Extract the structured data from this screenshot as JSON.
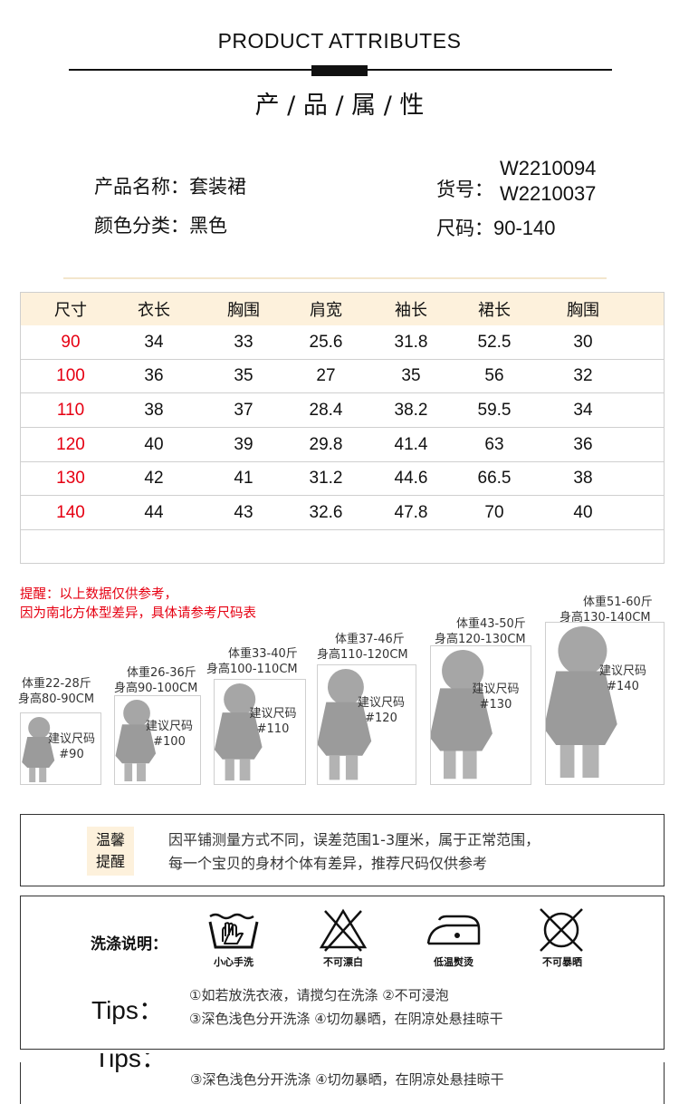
{
  "header": {
    "title_en": "PRODUCT ATTRIBUTES",
    "title_cn": "产 / 品 / 属 / 性"
  },
  "product": {
    "name_text": "产品名称：套装裙",
    "color_text": "颜色分类：黑色",
    "sku_label": "货号：",
    "sku_1": "W2210094",
    "sku_2": "W2210037",
    "size_label": "尺码：",
    "size_value": "90-140"
  },
  "size_table": {
    "headers": [
      "尺寸",
      "衣长",
      "胸围",
      "肩宽",
      "袖长",
      "裙长",
      "胸围"
    ],
    "rows": [
      [
        "90",
        "34",
        "33",
        "25.6",
        "31.8",
        "52.5",
        "30"
      ],
      [
        "100",
        "36",
        "35",
        "27",
        "35",
        "56",
        "32"
      ],
      [
        "110",
        "38",
        "37",
        "28.4",
        "38.2",
        "59.5",
        "34"
      ],
      [
        "120",
        "40",
        "39",
        "29.8",
        "41.4",
        "63",
        "36"
      ],
      [
        "130",
        "42",
        "41",
        "31.2",
        "44.6",
        "66.5",
        "38"
      ],
      [
        "140",
        "44",
        "43",
        "32.6",
        "47.8",
        "70",
        "40"
      ]
    ]
  },
  "reminder": {
    "line1": "提醒：以上数据仅供参考，",
    "line2": "因为南北方体型差异，具体请参考尺码表"
  },
  "size_guide": [
    {
      "weight": "体重22-28斤",
      "height": "身高80-90CM",
      "rec": "建议尺码",
      "size": "#90"
    },
    {
      "weight": "体重26-36斤",
      "height": "身高90-100CM",
      "rec": "建议尺码",
      "size": "#100"
    },
    {
      "weight": "体重33-40斤",
      "height": "身高100-110CM",
      "rec": "建议尺码",
      "size": "#110"
    },
    {
      "weight": "体重37-46斤",
      "height": "身高110-120CM",
      "rec": "建议尺码",
      "size": "#120"
    },
    {
      "weight": "体重43-50斤",
      "height": "身高120-130CM",
      "rec": "建议尺码",
      "size": "#130"
    },
    {
      "weight": "体重51-60斤",
      "height": "身高130-140CM",
      "rec": "建议尺码",
      "size": "#140"
    }
  ],
  "warm_tips": {
    "badge_1": "温馨",
    "badge_2": "提醒",
    "line1": "因平铺测量方式不同，误差范围1-3厘米，属于正常范围，",
    "line2": "每一个宝贝的身材个体有差异，推荐尺码仅供参考"
  },
  "wash": {
    "title": "洗涤说明：",
    "icons": [
      {
        "icon": "hand-wash-icon",
        "label": "小心手洗"
      },
      {
        "icon": "no-bleach-icon",
        "label": "不可漂白"
      },
      {
        "icon": "low-iron-icon",
        "label": "低温熨烫"
      },
      {
        "icon": "no-sun-dry-icon",
        "label": "不可暴晒"
      }
    ],
    "tips_label": "Tips：",
    "tip_line1": "①如若放洗衣液，请搅匀在洗涤 ②不可浸泡",
    "tip_line2": "③深色浅色分开洗涤 ④切勿暴晒，在阴凉处悬挂晾干"
  },
  "duplicate": {
    "tips_label": "Tips：",
    "tip_line2": "③深色浅色分开洗涤 ④切勿暴晒，在阴凉处悬挂晾干"
  }
}
